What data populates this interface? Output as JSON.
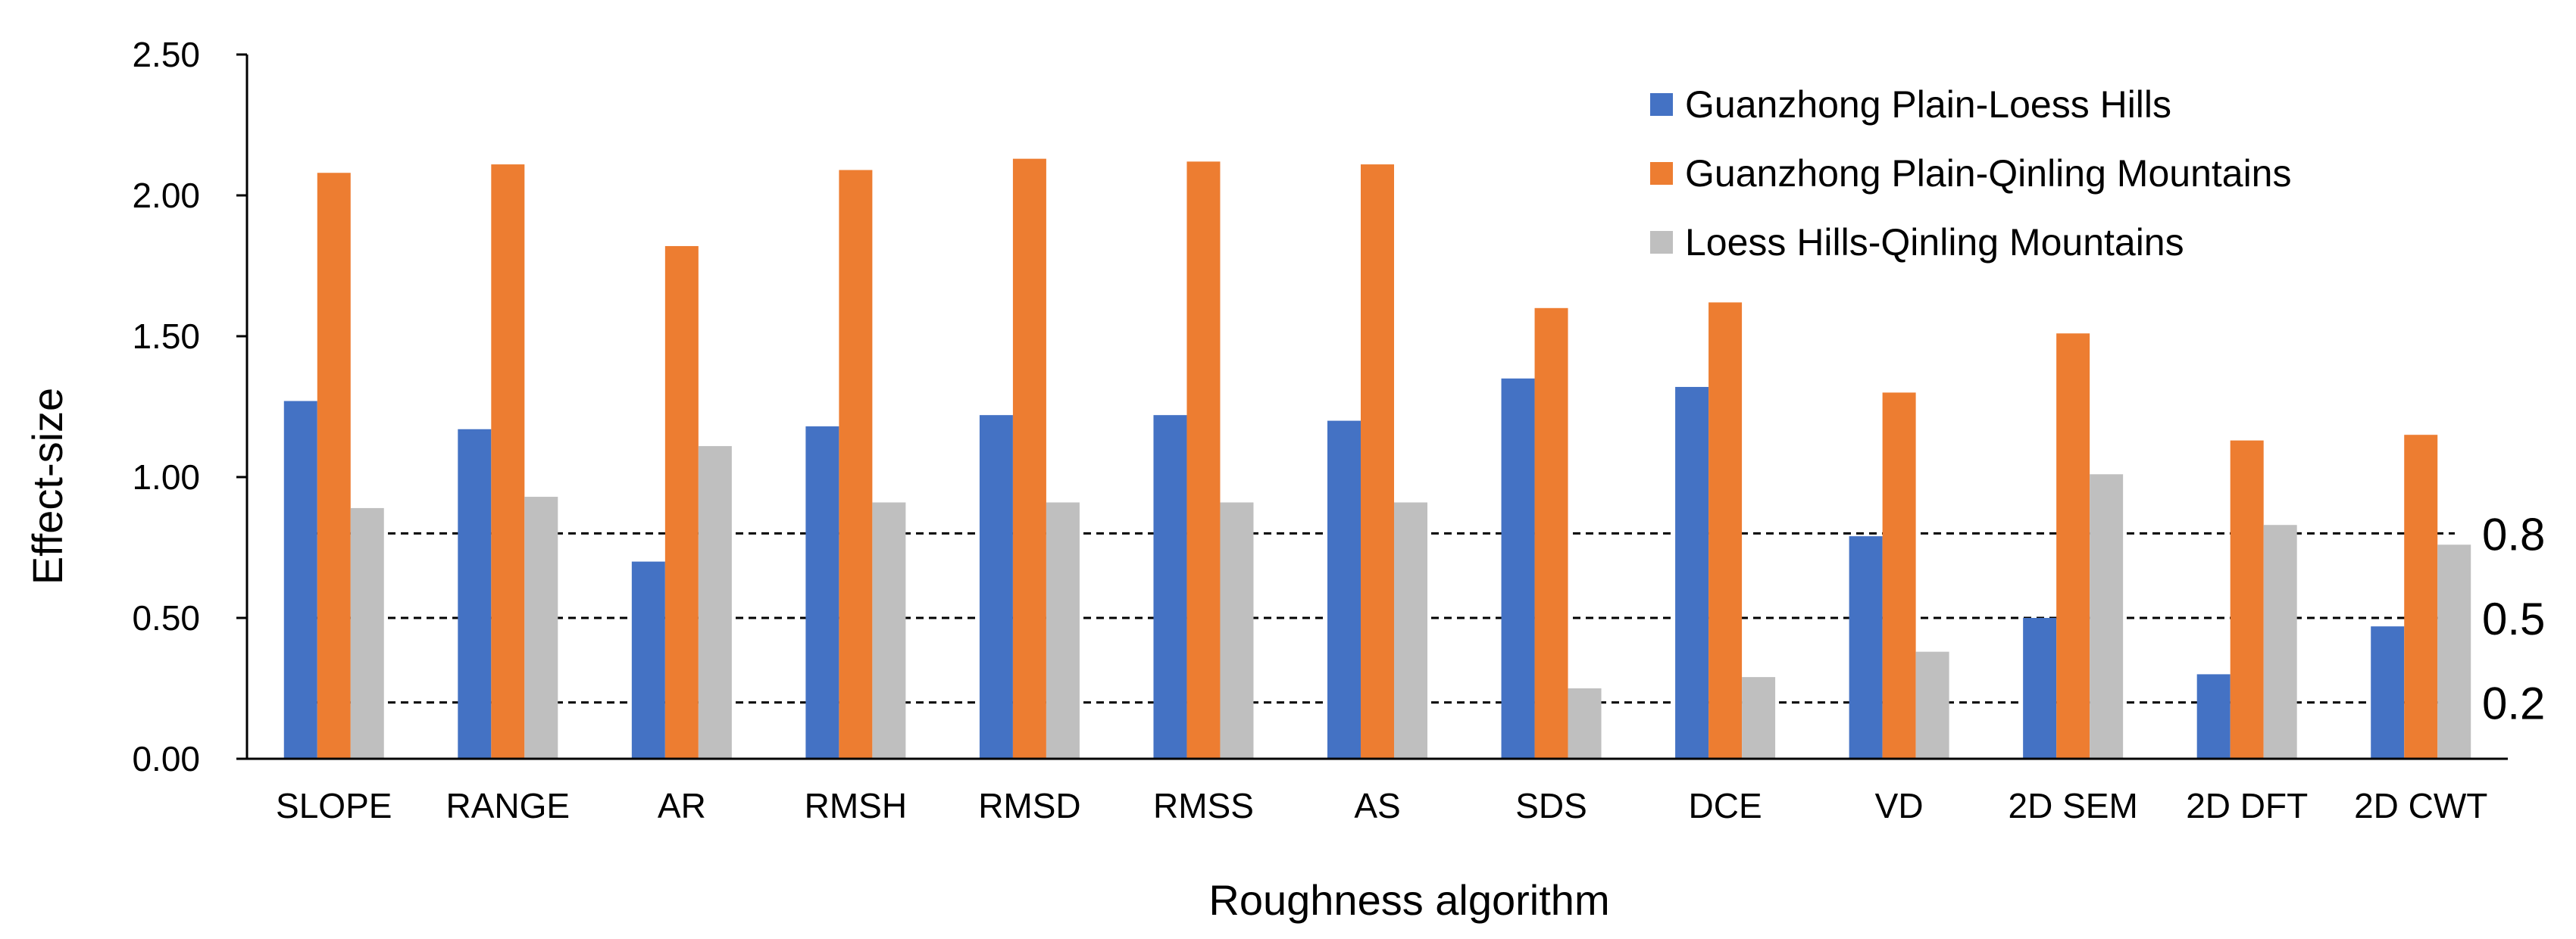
{
  "chart_data": {
    "type": "bar",
    "title": "",
    "xlabel": "Roughness algorithm",
    "ylabel": "Effect-size",
    "ylim": [
      0,
      2.5
    ],
    "yticks": [
      "0.00",
      "0.50",
      "1.00",
      "1.50",
      "2.00",
      "2.50"
    ],
    "ytick_values": [
      0,
      0.5,
      1.0,
      1.5,
      2.0,
      2.5
    ],
    "categories": [
      "SLOPE",
      "RANGE",
      "AR",
      "RMSH",
      "RMSD",
      "RMSS",
      "AS",
      "SDS",
      "DCE",
      "VD",
      "2D SEM",
      "2D DFT",
      "2D CWT"
    ],
    "series": [
      {
        "name": "Guanzhong Plain-Loess Hills",
        "color": "#4472C4",
        "values": [
          1.27,
          1.17,
          0.7,
          1.18,
          1.22,
          1.22,
          1.2,
          1.35,
          1.32,
          0.79,
          0.5,
          0.3,
          0.47
        ]
      },
      {
        "name": "Guanzhong Plain-Qinling Mountains",
        "color": "#ED7D31",
        "values": [
          2.08,
          2.11,
          1.82,
          2.09,
          2.13,
          2.12,
          2.11,
          1.6,
          1.62,
          1.3,
          1.51,
          1.13,
          1.15
        ]
      },
      {
        "name": "Loess Hills-Qinling Mountains",
        "color": "#BFBFBF",
        "values": [
          0.89,
          0.93,
          1.11,
          0.91,
          0.91,
          0.91,
          0.91,
          0.25,
          0.29,
          0.38,
          1.01,
          0.83,
          0.76
        ]
      }
    ],
    "reference_lines": [
      {
        "value": 0.8,
        "label": "0.8"
      },
      {
        "value": 0.5,
        "label": "0.5"
      },
      {
        "value": 0.2,
        "label": "0.2"
      }
    ],
    "legend_position": "top-right",
    "grid": false
  }
}
